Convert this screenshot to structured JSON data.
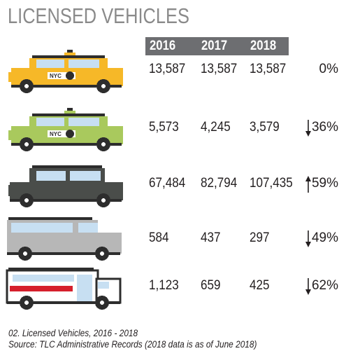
{
  "title": "LICENSED VEHICLES",
  "columns": [
    "2016",
    "2017",
    "2018"
  ],
  "rows": [
    {
      "vehicle_icon": "yellow-taxi-icon",
      "values": [
        "13,587",
        "13,587",
        "13,587"
      ],
      "change": "0%",
      "direction": "none"
    },
    {
      "vehicle_icon": "green-taxi-icon",
      "values": [
        "5,573",
        "4,245",
        "3,579"
      ],
      "change": "36%",
      "direction": "down"
    },
    {
      "vehicle_icon": "black-car-icon",
      "values": [
        "67,484",
        "82,794",
        "107,435"
      ],
      "change": "59%",
      "direction": "up"
    },
    {
      "vehicle_icon": "van-icon",
      "values": [
        "584",
        "437",
        "297"
      ],
      "change": "49%",
      "direction": "down"
    },
    {
      "vehicle_icon": "paratransit-bus-icon",
      "values": [
        "1,123",
        "659",
        "425"
      ],
      "change": "62%",
      "direction": "down"
    }
  ],
  "footnote": {
    "caption": "02. Licensed Vehicles, 2016 - 2018",
    "source": "Source: TLC Administrative Records (2018 data is as of June 2018)"
  },
  "colors": {
    "yellow_taxi": "#f6b828",
    "green_taxi": "#a9c95d",
    "black_car": "#4a4d4a",
    "van": "#b7b7b7",
    "header": "#6d6e71",
    "bus_stripe": "#d51f2c"
  }
}
